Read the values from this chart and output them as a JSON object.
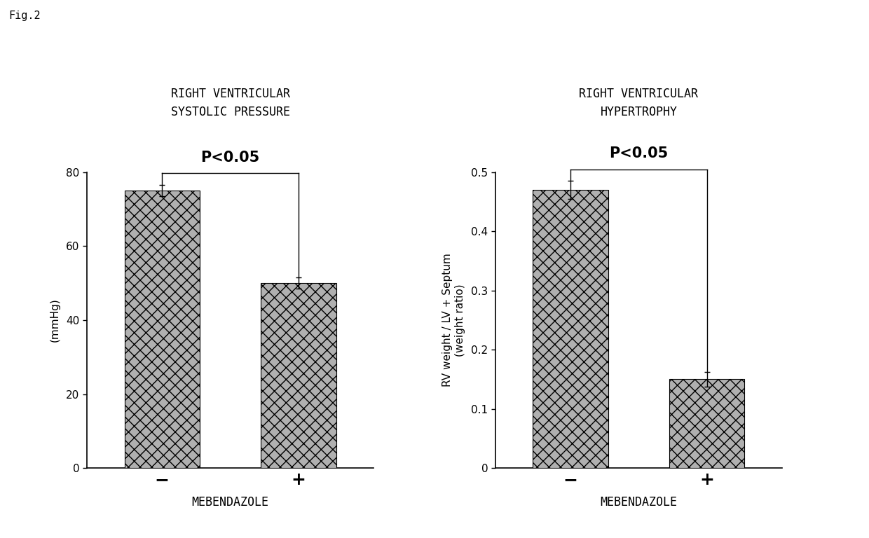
{
  "fig_label": "Fig.2",
  "left": {
    "title": "RIGHT VENTRICULAR\nSYSTOLIC PRESSURE",
    "ylabel": "(mmHg)",
    "xlabel": "MEBENDAZOLE",
    "categories": [
      "−",
      "+"
    ],
    "values": [
      75.0,
      50.0
    ],
    "errors": [
      1.5,
      1.5
    ],
    "ylim": [
      0,
      80
    ],
    "yticks": [
      0,
      20,
      40,
      60,
      80
    ],
    "ptext": "P<0.05",
    "bar_color": "#b0b0b0",
    "hatch": "xx"
  },
  "right": {
    "title": "RIGHT VENTRICULAR\nHYPERTROPHY",
    "ylabel": "RV weight / LV + Septum\n(weight ratio)",
    "xlabel": "MEBENDAZOLE",
    "categories": [
      "−",
      "+"
    ],
    "values": [
      0.47,
      0.15
    ],
    "errors": [
      0.015,
      0.012
    ],
    "ylim": [
      0,
      0.5
    ],
    "yticks": [
      0,
      0.1,
      0.2,
      0.3,
      0.4,
      0.5
    ],
    "ptext": "P<0.05",
    "bar_color": "#b0b0b0",
    "hatch": "xx"
  },
  "background_color": "#ffffff",
  "title_fontsize": 12,
  "ylabel_fontsize": 11,
  "xlabel_fontsize": 12,
  "tick_fontsize": 11,
  "pvalue_fontsize": 15,
  "xticklabel_fontsize": 18
}
